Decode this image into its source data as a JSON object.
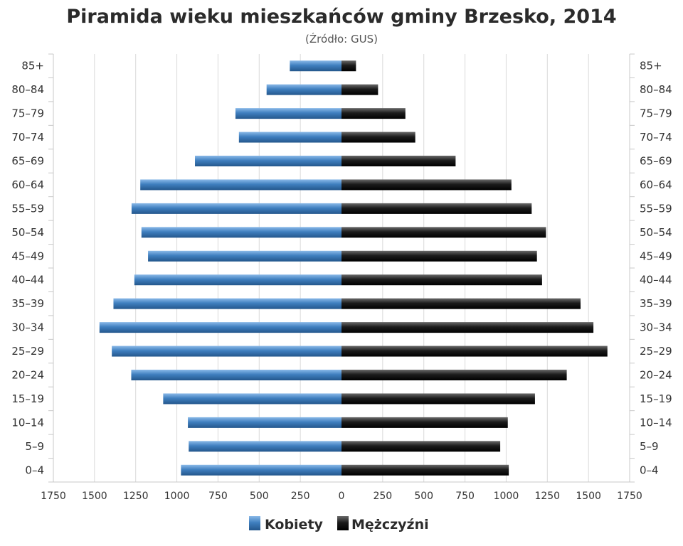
{
  "chart_data": {
    "type": "bar",
    "orientation": "horizontal",
    "title": "Piramida wieku mieszkańców gminy Brzesko, 2014",
    "subtitle": "(Źródło: GUS)",
    "categories": [
      "0-4",
      "5-9",
      "10-14",
      "15-19",
      "20-24",
      "25-29",
      "30-34",
      "35-39",
      "40-44",
      "45-49",
      "50-54",
      "55-59",
      "60-64",
      "65-69",
      "70-74",
      "75-79",
      "80-84",
      "85+"
    ],
    "series": [
      {
        "name": "Kobiety",
        "color": "#3f7fbf",
        "values": [
          975,
          928,
          933,
          1083,
          1277,
          1395,
          1470,
          1385,
          1258,
          1175,
          1215,
          1275,
          1222,
          890,
          623,
          644,
          455,
          314
        ]
      },
      {
        "name": "Mężczyźni",
        "color": "#1c1c1c",
        "values": [
          1016,
          964,
          1010,
          1175,
          1368,
          1615,
          1530,
          1452,
          1218,
          1187,
          1242,
          1155,
          1032,
          693,
          448,
          388,
          222,
          88
        ]
      }
    ],
    "x_ticks": [
      "1750",
      "1500",
      "1250",
      "1000",
      "750",
      "500",
      "250",
      "0",
      "250",
      "500",
      "750",
      "1000",
      "1250",
      "1500",
      "1750"
    ],
    "xlim": [
      -1750,
      1750
    ],
    "grid": true,
    "legend_position": "bottom-center"
  }
}
